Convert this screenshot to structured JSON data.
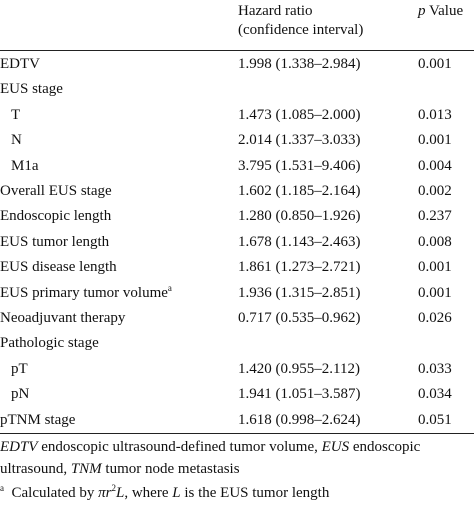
{
  "header": {
    "hazard_ratio_line1": "Hazard ratio",
    "hazard_ratio_line2": "(confidence interval)",
    "p_value_italic": "p",
    "p_value_rest": " Value"
  },
  "rows": [
    {
      "label": "EDTV",
      "hr": "1.998 (1.338–2.984)",
      "p": "0.001",
      "indent": false
    },
    {
      "label": "EUS stage",
      "hr": "",
      "p": "",
      "indent": false
    },
    {
      "label": "T",
      "hr": "1.473 (1.085–2.000)",
      "p": "0.013",
      "indent": true
    },
    {
      "label": "N",
      "hr": "2.014 (1.337–3.033)",
      "p": "0.001",
      "indent": true
    },
    {
      "label": "M1a",
      "hr": "3.795 (1.531–9.406)",
      "p": "0.004",
      "indent": true
    },
    {
      "label": "Overall EUS stage",
      "hr": "1.602 (1.185–2.164)",
      "p": "0.002",
      "indent": false
    },
    {
      "label": "Endoscopic length",
      "hr": "1.280 (0.850–1.926)",
      "p": "0.237",
      "indent": false
    },
    {
      "label": "EUS tumor length",
      "hr": "1.678 (1.143–2.463)",
      "p": "0.008",
      "indent": false
    },
    {
      "label": "EUS disease length",
      "hr": "1.861 (1.273–2.721)",
      "p": "0.001",
      "indent": false
    },
    {
      "label": "EUS primary tumor volume",
      "sup": "a",
      "hr": "1.936 (1.315–2.851)",
      "p": "0.001",
      "indent": false
    },
    {
      "label": "Neoadjuvant therapy",
      "hr": "0.717 (0.535–0.962)",
      "p": "0.026",
      "indent": false
    },
    {
      "label": "Pathologic stage",
      "hr": "",
      "p": "",
      "indent": false
    },
    {
      "label": "pT",
      "hr": "1.420 (0.955–2.112)",
      "p": "0.033",
      "indent": true
    },
    {
      "label": "pN",
      "hr": "1.941 (1.051–3.587)",
      "p": "0.034",
      "indent": true
    },
    {
      "label": "pTNM stage",
      "hr": "1.618 (0.998–2.624)",
      "p": "0.051",
      "indent": false
    }
  ],
  "footnote": {
    "abbrev_edtv": "EDTV",
    "abbrev_edtv_def": " endoscopic ultrasound-defined tumor volume, ",
    "abbrev_eus": "EUS",
    "abbrev_eus_def": " endoscopic ultrasound, ",
    "abbrev_tnm": "TNM",
    "abbrev_tnm_def": " tumor node metastasis",
    "note_marker": "a",
    "note_text_1": "Calculated by ",
    "note_pi": "π",
    "note_r": "r",
    "note_exp": "2",
    "note_L": "L",
    "note_text_2": ", where ",
    "note_L2": "L",
    "note_text_3": " is the EUS tumor length"
  }
}
